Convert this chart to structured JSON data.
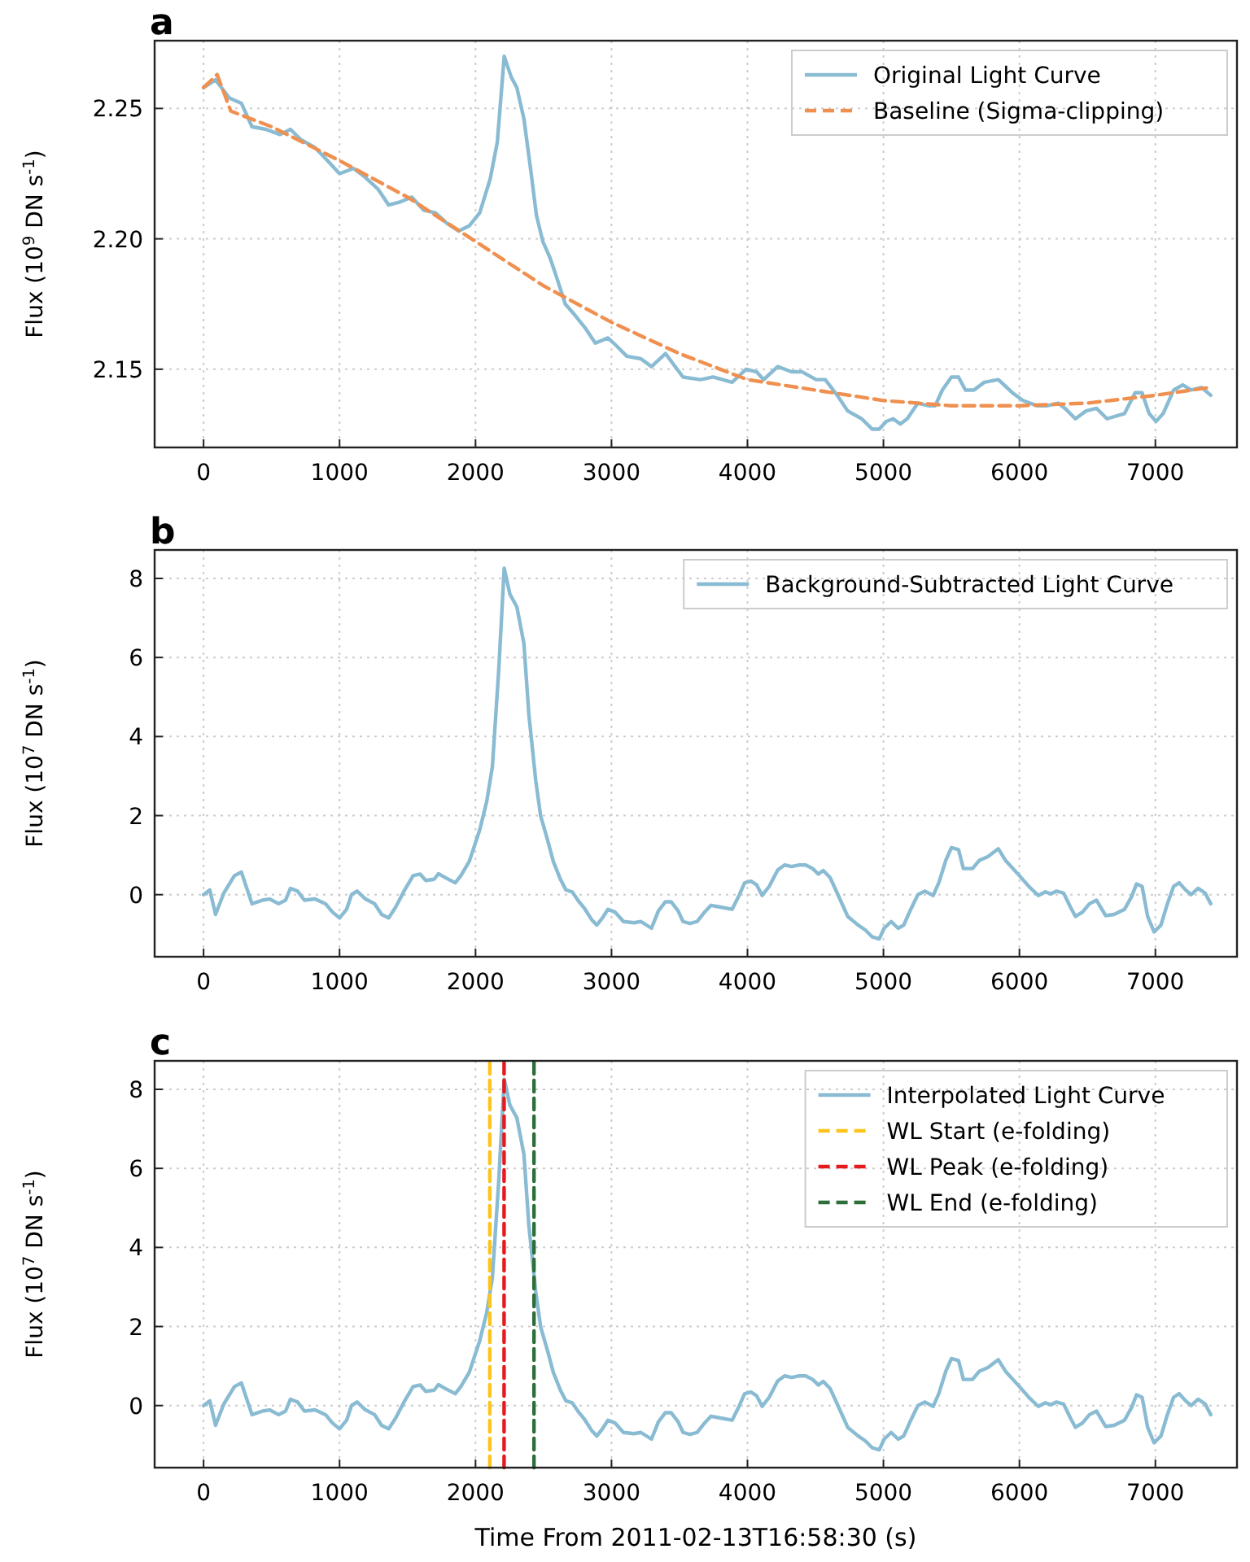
{
  "chart_data": [
    {
      "type": "line",
      "title": "a",
      "ylabel": "Flux (10$^{9}$ DN s$^{-1}$)",
      "xlim": [
        -360,
        7600
      ],
      "xticks": [
        0,
        1000,
        2000,
        3000,
        4000,
        5000,
        6000,
        7000
      ],
      "ylim": [
        2.12,
        2.276
      ],
      "yticks": [
        2.15,
        {
          "value": 2.2,
          "label": "2.20"
        },
        2.25
      ],
      "grid": true,
      "legend": "top right",
      "series": [
        {
          "name": "Original Light Curve",
          "color": "#89bbd3",
          "x": [
            0,
            88,
            190,
            278,
            356,
            459,
            562,
            639,
            716,
            820,
            912,
            1000,
            1103,
            1180,
            1284,
            1361,
            1438,
            1531,
            1619,
            1706,
            1789,
            1876,
            1954,
            2031,
            2108,
            2160,
            2211,
            2263,
            2304,
            2356,
            2407,
            2448,
            2495,
            2546,
            2598,
            2660,
            2727,
            2804,
            2881,
            2974,
            3036,
            3113,
            3216,
            3294,
            3397,
            3526,
            3655,
            3747,
            3887,
            3990,
            4067,
            4119,
            4222,
            4325,
            4402,
            4505,
            4572,
            4660,
            4737,
            4840,
            4918,
            4969,
            5021,
            5072,
            5124,
            5175,
            5253,
            5330,
            5381,
            5433,
            5500,
            5552,
            5603,
            5665,
            5742,
            5845,
            5948,
            6026,
            6129,
            6206,
            6284,
            6335,
            6412,
            6490,
            6567,
            6644,
            6773,
            6851,
            6902,
            6954,
            7005,
            7057,
            7134,
            7201,
            7263,
            7340,
            7407
          ],
          "values": [
            2.258,
            2.261,
            2.254,
            2.252,
            2.243,
            2.242,
            2.24,
            2.242,
            2.238,
            2.235,
            2.23,
            2.225,
            2.227,
            2.224,
            2.219,
            2.213,
            2.214,
            2.216,
            2.211,
            2.21,
            2.206,
            2.203,
            2.205,
            2.21,
            2.223,
            2.237,
            2.27,
            2.262,
            2.258,
            2.246,
            2.226,
            2.209,
            2.199,
            2.193,
            2.185,
            2.175,
            2.171,
            2.166,
            2.16,
            2.162,
            2.159,
            2.155,
            2.154,
            2.151,
            2.156,
            2.147,
            2.146,
            2.147,
            2.145,
            2.15,
            2.149,
            2.146,
            2.151,
            2.149,
            2.149,
            2.146,
            2.146,
            2.14,
            2.134,
            2.131,
            2.127,
            2.127,
            2.13,
            2.131,
            2.129,
            2.131,
            2.137,
            2.136,
            2.136,
            2.142,
            2.147,
            2.147,
            2.142,
            2.142,
            2.145,
            2.146,
            2.141,
            2.138,
            2.136,
            2.136,
            2.137,
            2.135,
            2.131,
            2.134,
            2.135,
            2.131,
            2.133,
            2.141,
            2.141,
            2.133,
            2.13,
            2.133,
            2.142,
            2.144,
            2.142,
            2.143,
            2.14
          ]
        },
        {
          "name": "Baseline (Sigma-clipping)",
          "color": "#ef9050",
          "line_style": "dashed",
          "x": [
            0,
            100,
            200,
            500,
            1000,
            1500,
            2000,
            2500,
            3000,
            3500,
            4000,
            4500,
            5000,
            5500,
            6000,
            6500,
            7000,
            7400
          ],
          "values": [
            2.258,
            2.263,
            2.249,
            2.243,
            2.23,
            2.216,
            2.199,
            2.182,
            2.168,
            2.156,
            2.146,
            2.142,
            2.138,
            2.136,
            2.136,
            2.137,
            2.14,
            2.143
          ]
        }
      ]
    },
    {
      "type": "line",
      "title": "b",
      "ylabel": "Flux (10$^{7}$ DN s$^{-1}$)",
      "xlim": [
        -360,
        7600
      ],
      "xticks": [
        0,
        1000,
        2000,
        3000,
        4000,
        5000,
        6000,
        7000
      ],
      "ylim": [
        -1.57,
        8.72
      ],
      "yticks": [
        0,
        2,
        4,
        6,
        8
      ],
      "grid": true,
      "legend": "top right",
      "series": [
        {
          "name": "Background-Subtracted Light Curve",
          "color": "#89bbd3",
          "x": [
            0,
            46,
            88,
            149,
            227,
            278,
            356,
            433,
            485,
            552,
            603,
            639,
            691,
            742,
            820,
            897,
            948,
            1000,
            1052,
            1088,
            1129,
            1191,
            1258,
            1309,
            1361,
            1412,
            1479,
            1541,
            1593,
            1634,
            1696,
            1727,
            1773,
            1851,
            1892,
            1954,
            2031,
            2082,
            2124,
            2170,
            2211,
            2253,
            2304,
            2356,
            2392,
            2443,
            2479,
            2531,
            2572,
            2624,
            2665,
            2711,
            2753,
            2804,
            2856,
            2892,
            2933,
            2974,
            3026,
            3088,
            3165,
            3216,
            3294,
            3345,
            3397,
            3438,
            3490,
            3526,
            3577,
            3629,
            3680,
            3732,
            3809,
            3887,
            3938,
            3979,
            4026,
            4067,
            4108,
            4160,
            4222,
            4273,
            4325,
            4376,
            4428,
            4479,
            4521,
            4557,
            4608,
            4660,
            4737,
            4814,
            4866,
            4918,
            4969,
            5005,
            5057,
            5108,
            5149,
            5201,
            5253,
            5304,
            5366,
            5407,
            5459,
            5500,
            5552,
            5588,
            5655,
            5706,
            5768,
            5845,
            5897,
            6000,
            6077,
            6139,
            6191,
            6232,
            6273,
            6325,
            6376,
            6412,
            6464,
            6515,
            6567,
            6634,
            6696,
            6773,
            6825,
            6861,
            6902,
            6943,
            6990,
            7041,
            7088,
            7134,
            7175,
            7222,
            7263,
            7314,
            7366,
            7407
          ],
          "values": [
            0,
            0.12,
            -0.5,
            0.04,
            0.48,
            0.57,
            -0.23,
            -0.14,
            -0.11,
            -0.23,
            -0.14,
            0.16,
            0.09,
            -0.14,
            -0.11,
            -0.23,
            -0.44,
            -0.59,
            -0.37,
            0,
            0.09,
            -0.11,
            -0.23,
            -0.5,
            -0.59,
            -0.32,
            0.12,
            0.48,
            0.52,
            0.36,
            0.39,
            0.53,
            0.44,
            0.3,
            0.48,
            0.84,
            1.64,
            2.35,
            3.24,
            5.64,
            8.26,
            7.6,
            7.28,
            6.35,
            4.57,
            2.88,
            1.99,
            1.37,
            0.84,
            0.39,
            0.12,
            0.07,
            -0.14,
            -0.36,
            -0.64,
            -0.77,
            -0.59,
            -0.37,
            -0.44,
            -0.68,
            -0.71,
            -0.68,
            -0.85,
            -0.41,
            -0.18,
            -0.18,
            -0.41,
            -0.68,
            -0.73,
            -0.68,
            -0.46,
            -0.27,
            -0.32,
            -0.37,
            -0.02,
            0.3,
            0.34,
            0.25,
            -0.02,
            0.21,
            0.62,
            0.75,
            0.71,
            0.75,
            0.75,
            0.66,
            0.52,
            0.61,
            0.43,
            0.04,
            -0.55,
            -0.77,
            -0.89,
            -1.07,
            -1.12,
            -0.85,
            -0.68,
            -0.85,
            -0.77,
            -0.37,
            0,
            0.09,
            -0.02,
            0.3,
            0.87,
            1.19,
            1.14,
            0.66,
            0.66,
            0.87,
            0.96,
            1.16,
            0.87,
            0.48,
            0.18,
            -0.02,
            0.07,
            0.02,
            0.09,
            0.04,
            -0.32,
            -0.55,
            -0.44,
            -0.23,
            -0.14,
            -0.53,
            -0.5,
            -0.37,
            -0.05,
            0.27,
            0.21,
            -0.55,
            -0.94,
            -0.77,
            -0.23,
            0.21,
            0.3,
            0.12,
            0,
            0.16,
            0.04,
            -0.23
          ]
        }
      ]
    },
    {
      "type": "line",
      "title": "c",
      "xlabel": "Time From 2011-02-13T16:58:30 (s)",
      "ylabel": "Flux (10$^{7}$ DN s$^{-1}$)",
      "xlim": [
        -360,
        7600
      ],
      "xticks": [
        0,
        1000,
        2000,
        3000,
        4000,
        5000,
        6000,
        7000
      ],
      "ylim": [
        -1.57,
        8.72
      ],
      "yticks": [
        0,
        2,
        4,
        6,
        8
      ],
      "grid": true,
      "legend": "top right",
      "series": [
        {
          "name": "Interpolated Light Curve",
          "color": "#89bbd3",
          "x": [
            0,
            46,
            88,
            149,
            227,
            278,
            356,
            433,
            485,
            552,
            603,
            639,
            691,
            742,
            820,
            897,
            948,
            1000,
            1052,
            1088,
            1129,
            1191,
            1258,
            1309,
            1361,
            1412,
            1479,
            1541,
            1593,
            1634,
            1696,
            1727,
            1773,
            1851,
            1892,
            1954,
            2031,
            2082,
            2124,
            2170,
            2211,
            2253,
            2304,
            2356,
            2392,
            2443,
            2479,
            2531,
            2572,
            2624,
            2665,
            2711,
            2753,
            2804,
            2856,
            2892,
            2933,
            2974,
            3026,
            3088,
            3165,
            3216,
            3294,
            3345,
            3397,
            3438,
            3490,
            3526,
            3577,
            3629,
            3680,
            3732,
            3809,
            3887,
            3938,
            3979,
            4026,
            4067,
            4108,
            4160,
            4222,
            4273,
            4325,
            4376,
            4428,
            4479,
            4521,
            4557,
            4608,
            4660,
            4737,
            4814,
            4866,
            4918,
            4969,
            5005,
            5057,
            5108,
            5149,
            5201,
            5253,
            5304,
            5366,
            5407,
            5459,
            5500,
            5552,
            5588,
            5655,
            5706,
            5768,
            5845,
            5897,
            6000,
            6077,
            6139,
            6191,
            6232,
            6273,
            6325,
            6376,
            6412,
            6464,
            6515,
            6567,
            6634,
            6696,
            6773,
            6825,
            6861,
            6902,
            6943,
            6990,
            7041,
            7088,
            7134,
            7175,
            7222,
            7263,
            7314,
            7366,
            7407
          ],
          "values": [
            0,
            0.12,
            -0.5,
            0.04,
            0.48,
            0.57,
            -0.23,
            -0.14,
            -0.11,
            -0.23,
            -0.14,
            0.16,
            0.09,
            -0.14,
            -0.11,
            -0.23,
            -0.44,
            -0.59,
            -0.37,
            0,
            0.09,
            -0.11,
            -0.23,
            -0.5,
            -0.59,
            -0.32,
            0.12,
            0.48,
            0.52,
            0.36,
            0.39,
            0.53,
            0.44,
            0.3,
            0.48,
            0.84,
            1.64,
            2.35,
            3.24,
            5.64,
            8.26,
            7.6,
            7.28,
            6.35,
            4.57,
            2.88,
            1.99,
            1.37,
            0.84,
            0.39,
            0.12,
            0.07,
            -0.14,
            -0.36,
            -0.64,
            -0.77,
            -0.59,
            -0.37,
            -0.44,
            -0.68,
            -0.71,
            -0.68,
            -0.85,
            -0.41,
            -0.18,
            -0.18,
            -0.41,
            -0.68,
            -0.73,
            -0.68,
            -0.46,
            -0.27,
            -0.32,
            -0.37,
            -0.02,
            0.3,
            0.34,
            0.25,
            -0.02,
            0.21,
            0.62,
            0.75,
            0.71,
            0.75,
            0.75,
            0.66,
            0.52,
            0.61,
            0.43,
            0.04,
            -0.55,
            -0.77,
            -0.89,
            -1.07,
            -1.12,
            -0.85,
            -0.68,
            -0.85,
            -0.77,
            -0.37,
            0,
            0.09,
            -0.02,
            0.3,
            0.87,
            1.19,
            1.14,
            0.66,
            0.66,
            0.87,
            0.96,
            1.16,
            0.87,
            0.48,
            0.18,
            -0.02,
            0.07,
            0.02,
            0.09,
            0.04,
            -0.32,
            -0.55,
            -0.44,
            -0.23,
            -0.14,
            -0.53,
            -0.5,
            -0.37,
            -0.05,
            0.27,
            0.21,
            -0.55,
            -0.94,
            -0.77,
            -0.23,
            0.21,
            0.3,
            0.12,
            0,
            0.16,
            0.04,
            -0.23
          ]
        },
        {
          "name": "WL Start (e-folding)",
          "color": "#fcc41c",
          "line_style": "dashed",
          "x": [
            2105,
            2105
          ],
          "values": [
            -1.57,
            8.72
          ]
        },
        {
          "name": "WL Peak (e-folding)",
          "color": "#e41a1c",
          "line_style": "dashed",
          "x": [
            2210,
            2210
          ],
          "values": [
            -1.57,
            8.72
          ]
        },
        {
          "name": "WL End (e-folding)",
          "color": "#2e6e3a",
          "line_style": "dashed",
          "x": [
            2430,
            2430
          ],
          "values": [
            -1.57,
            8.72
          ]
        }
      ]
    }
  ]
}
